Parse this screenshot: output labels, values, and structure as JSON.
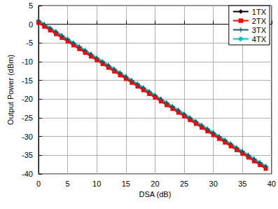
{
  "chart_data": {
    "type": "line",
    "x_label": "DSA (dB)",
    "y_label": "Output Power (dBm)",
    "x": [
      0,
      1,
      2,
      3,
      4,
      5,
      6,
      7,
      8,
      9,
      10,
      11,
      12,
      13,
      14,
      15,
      16,
      17,
      18,
      19,
      20,
      21,
      22,
      23,
      24,
      25,
      26,
      27,
      28,
      29,
      30,
      31,
      32,
      33,
      34,
      35,
      36,
      37,
      38,
      39
    ],
    "series": [
      {
        "name": "1TX",
        "color": "#000000",
        "marker": "diamond",
        "values": [
          0.9,
          -0.1,
          -1.1,
          -2.1,
          -3.1,
          -4.1,
          -5.1,
          -6.1,
          -7.1,
          -8.1,
          -9.1,
          -10.1,
          -11.1,
          -12.1,
          -13.1,
          -14.1,
          -15.1,
          -16.1,
          -17.1,
          -18.1,
          -19.1,
          -20.1,
          -21.1,
          -22.1,
          -23.1,
          -24.1,
          -25.1,
          -26.1,
          -27.1,
          -28.1,
          -29.1,
          -30.1,
          -31.1,
          -32.1,
          -33.1,
          -34.1,
          -35.1,
          -36.1,
          -37.1,
          -38.1
        ]
      },
      {
        "name": "2TX",
        "color": "#ff0000",
        "marker": "square",
        "values": [
          0.4,
          -0.6,
          -1.6,
          -2.6,
          -3.6,
          -4.6,
          -5.6,
          -6.6,
          -7.6,
          -8.6,
          -9.6,
          -10.6,
          -11.6,
          -12.6,
          -13.6,
          -14.6,
          -15.6,
          -16.6,
          -17.6,
          -18.6,
          -19.6,
          -20.6,
          -21.6,
          -22.6,
          -23.6,
          -24.6,
          -25.6,
          -26.6,
          -27.6,
          -28.6,
          -29.6,
          -30.6,
          -31.6,
          -32.6,
          -33.6,
          -34.6,
          -35.6,
          -36.6,
          -37.6,
          -38.6
        ]
      },
      {
        "name": "3TX",
        "color": "#1f5f6f",
        "marker": "plus",
        "values": [
          1.0,
          0.0,
          -1.0,
          -2.0,
          -3.0,
          -4.0,
          -5.0,
          -6.0,
          -7.0,
          -8.0,
          -9.0,
          -10.0,
          -11.0,
          -12.0,
          -13.0,
          -14.0,
          -15.0,
          -16.0,
          -17.0,
          -18.0,
          -19.0,
          -20.0,
          -21.0,
          -22.0,
          -23.0,
          -24.0,
          -25.0,
          -26.0,
          -27.0,
          -28.0,
          -29.0,
          -30.0,
          -31.0,
          -32.0,
          -33.0,
          -34.0,
          -35.0,
          -36.0,
          -37.0,
          -38.0
        ]
      },
      {
        "name": "4TX",
        "color": "#00bfcf",
        "marker": "none",
        "values": [
          1.1,
          0.1,
          -0.9,
          -1.9,
          -2.9,
          -3.9,
          -4.9,
          -5.9,
          -6.9,
          -7.9,
          -8.9,
          -9.9,
          -10.9,
          -11.9,
          -12.9,
          -13.9,
          -14.9,
          -15.9,
          -16.9,
          -17.9,
          -18.9,
          -19.9,
          -20.9,
          -21.9,
          -22.9,
          -23.9,
          -24.9,
          -25.9,
          -26.9,
          -27.9,
          -28.9,
          -29.9,
          -30.9,
          -31.9,
          -32.9,
          -33.9,
          -34.9,
          -35.9,
          -36.9,
          -37.9
        ]
      }
    ],
    "xlim": [
      0,
      40
    ],
    "xticks": [
      0,
      5,
      10,
      15,
      20,
      25,
      30,
      35,
      40
    ],
    "ylim": [
      -40,
      5
    ],
    "yticks": [
      -40,
      -35,
      -30,
      -25,
      -20,
      -15,
      -10,
      -5,
      0,
      5
    ],
    "grid": true,
    "legend": "upper right"
  }
}
